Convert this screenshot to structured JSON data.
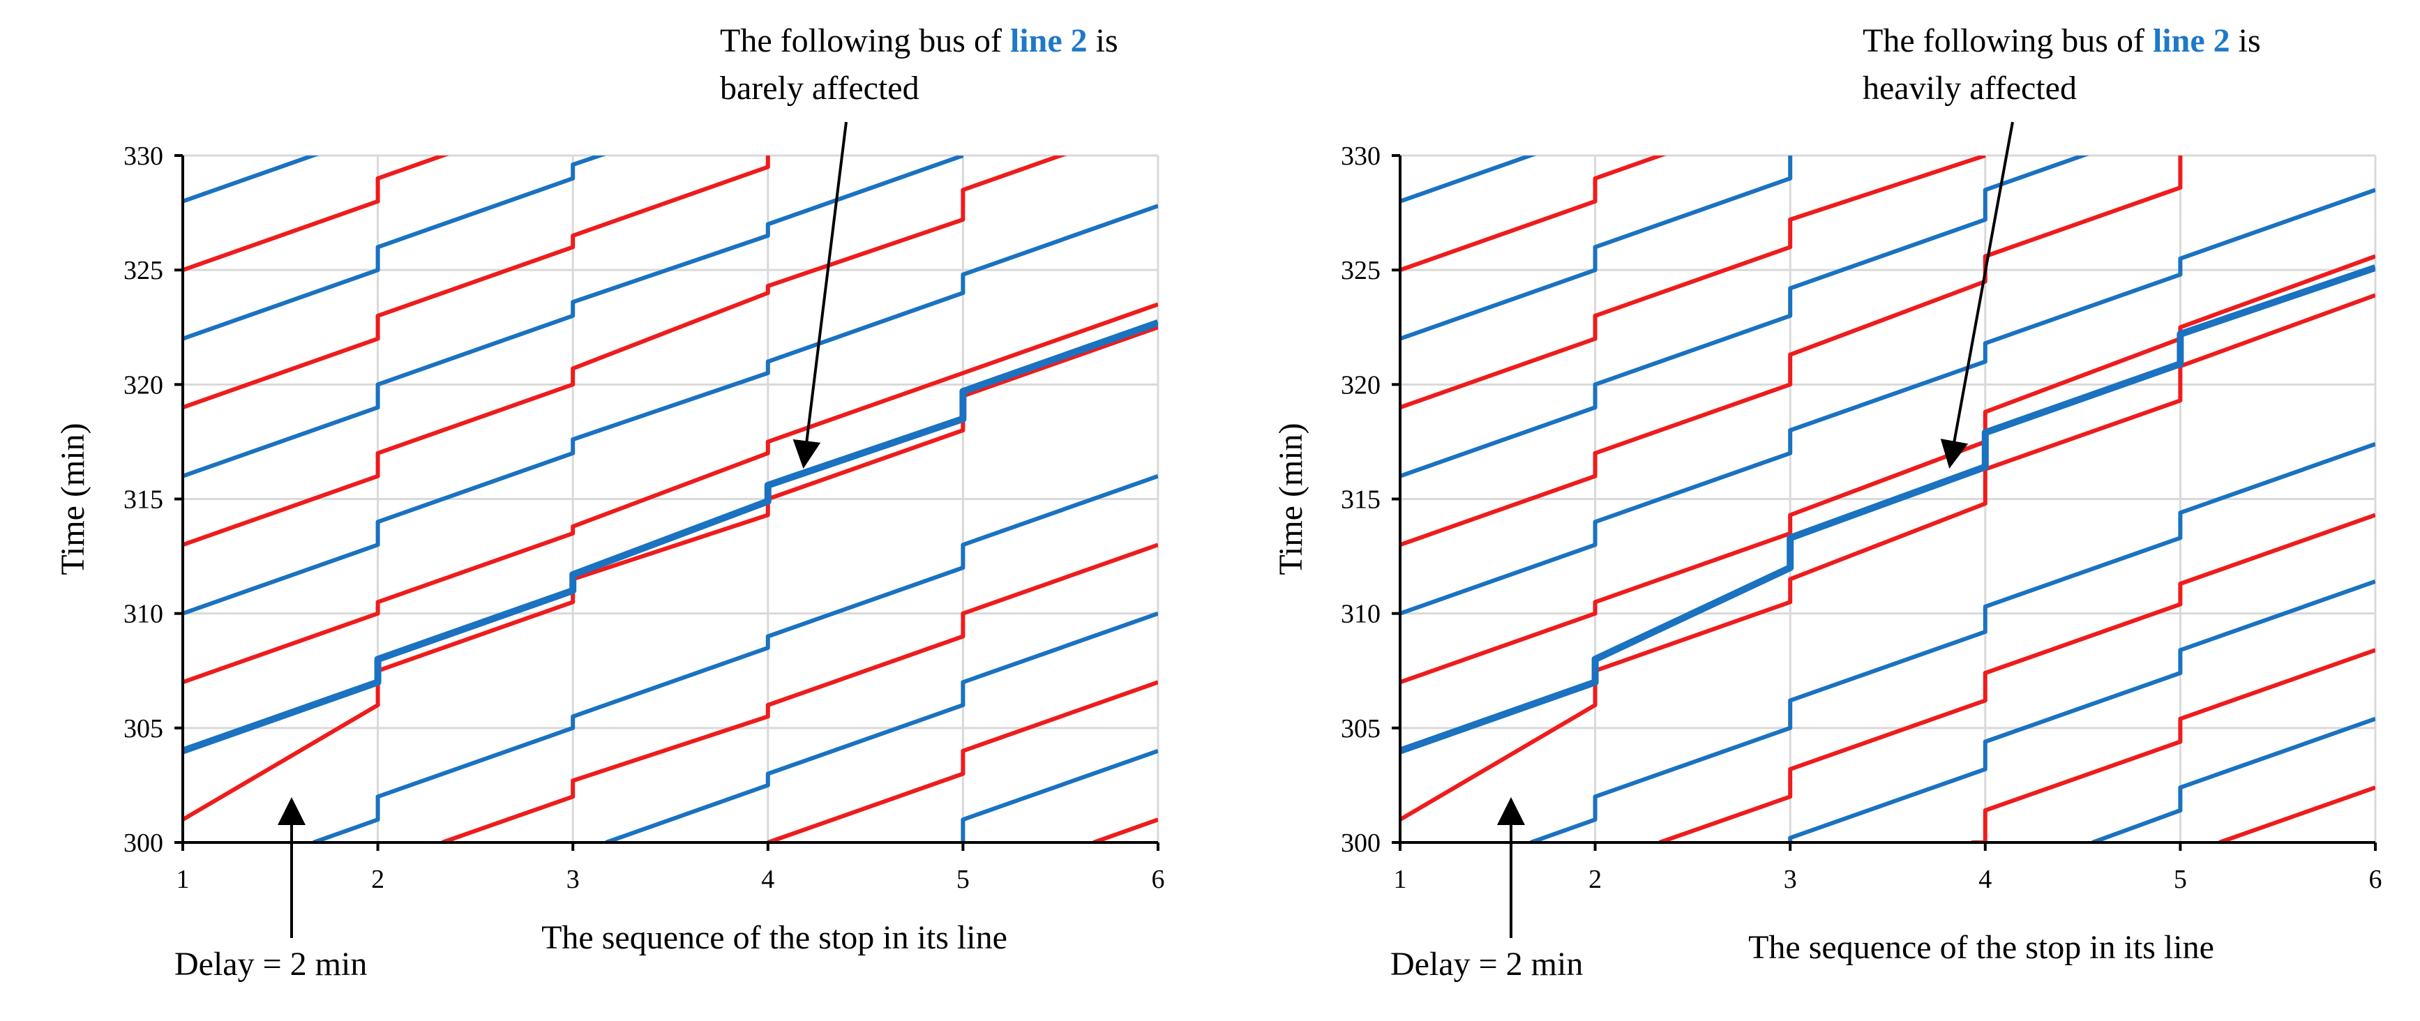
{
  "figure": {
    "colors": {
      "line1": "#ee1c1c",
      "line2": "#1a72c0",
      "grid": "#d9d9d9",
      "axis": "#000000"
    }
  },
  "chart_data": [
    {
      "type": "line",
      "xlabel": "The sequence of the stop in its line",
      "ylabel": "Time (min)",
      "xlim": [
        1,
        6
      ],
      "ylim": [
        300,
        330
      ],
      "x_ticks": [
        1,
        2,
        3,
        4,
        5,
        6
      ],
      "y_ticks": [
        300,
        305,
        310,
        315,
        320,
        325,
        330
      ],
      "grid": true,
      "annotations": [
        {
          "id": "following",
          "parts": [
            "The following bus of ",
            "line 2",
            " is"
          ],
          "line2": "barely affected"
        },
        {
          "id": "delay",
          "text": "Delay = 2 min"
        }
      ],
      "series": [
        {
          "color": "line1",
          "width": 6,
          "points": [
            [
              1,
              307
            ],
            [
              2,
              310
            ],
            [
              2,
              310.5
            ],
            [
              3,
              313.5
            ],
            [
              3,
              313.8
            ],
            [
              4,
              317
            ],
            [
              4,
              317.5
            ],
            [
              5,
              320.5
            ],
            [
              5,
              320.5
            ],
            [
              6,
              323.5
            ]
          ]
        },
        {
          "color": "line1",
          "width": 6,
          "points": [
            [
              1,
              313
            ],
            [
              2,
              316
            ],
            [
              2,
              317
            ],
            [
              3,
              320
            ],
            [
              3,
              320.7
            ],
            [
              4,
              324
            ],
            [
              4,
              324.3
            ],
            [
              5,
              327.2
            ],
            [
              5,
              328.5
            ],
            [
              6,
              331.5
            ]
          ]
        },
        {
          "color": "line1",
          "width": 6,
          "points": [
            [
              1,
              319
            ],
            [
              2,
              322
            ],
            [
              2,
              323
            ],
            [
              3,
              326
            ],
            [
              3,
              326.5
            ],
            [
              4,
              329.5
            ],
            [
              4,
              330
            ]
          ]
        },
        {
          "color": "line1",
          "width": 6,
          "points": [
            [
              1,
              325
            ],
            [
              2,
              328
            ],
            [
              2,
              329
            ],
            [
              3,
              332
            ]
          ]
        },
        {
          "color": "line1",
          "width": 6,
          "points": [
            [
              1,
              301
            ],
            [
              2,
              306
            ],
            [
              2,
              307.5
            ],
            [
              3,
              310.5
            ],
            [
              3,
              311.5
            ],
            [
              4,
              314.3
            ],
            [
              4,
              315
            ],
            [
              5,
              318
            ],
            [
              5,
              319.5
            ],
            [
              6,
              322.5
            ]
          ]
        },
        {
          "color": "line1",
          "width": 6,
          "points": [
            [
              2.33,
              300
            ],
            [
              3,
              302
            ],
            [
              3,
              302.7
            ],
            [
              4,
              305.5
            ],
            [
              4,
              306
            ],
            [
              5,
              309
            ],
            [
              5,
              310
            ],
            [
              6,
              313
            ]
          ]
        },
        {
          "color": "line1",
          "width": 6,
          "points": [
            [
              4,
              300
            ],
            [
              5,
              303
            ],
            [
              5,
              304
            ],
            [
              6,
              307
            ]
          ]
        },
        {
          "color": "line1",
          "width": 6,
          "points": [
            [
              5.67,
              300
            ],
            [
              6,
              301
            ]
          ]
        },
        {
          "color": "line2",
          "width": 6,
          "points": [
            [
              1,
              310
            ],
            [
              2,
              313
            ],
            [
              2,
              314
            ],
            [
              3,
              317
            ],
            [
              3,
              317.6
            ],
            [
              4,
              320.5
            ],
            [
              4,
              321
            ],
            [
              5,
              324
            ],
            [
              5,
              324.8
            ],
            [
              6,
              327.8
            ]
          ]
        },
        {
          "color": "line2",
          "width": 6,
          "points": [
            [
              1,
              316
            ],
            [
              2,
              319
            ],
            [
              2,
              320
            ],
            [
              3,
              323
            ],
            [
              3,
              323.6
            ],
            [
              4,
              326.5
            ],
            [
              4,
              327
            ],
            [
              5,
              330
            ],
            [
              5,
              330
            ]
          ]
        },
        {
          "color": "line2",
          "width": 6,
          "points": [
            [
              1,
              322
            ],
            [
              2,
              325
            ],
            [
              2,
              326
            ],
            [
              3,
              329
            ],
            [
              3,
              329.6
            ],
            [
              4,
              332.5
            ]
          ]
        },
        {
          "color": "line2",
          "width": 6,
          "points": [
            [
              1,
              328
            ],
            [
              2,
              331
            ]
          ]
        },
        {
          "color": "line2",
          "width": 6,
          "points": [
            [
              1.67,
              300
            ],
            [
              2,
              301
            ],
            [
              2,
              302
            ],
            [
              3,
              305
            ],
            [
              3,
              305.5
            ],
            [
              4,
              308.5
            ],
            [
              4,
              309
            ],
            [
              5,
              312
            ],
            [
              5,
              313
            ],
            [
              6,
              316
            ]
          ]
        },
        {
          "color": "line2",
          "width": 6,
          "points": [
            [
              3.17,
              300
            ],
            [
              4,
              302.5
            ],
            [
              4,
              303
            ],
            [
              5,
              306
            ],
            [
              5,
              307
            ],
            [
              6,
              310
            ]
          ]
        },
        {
          "color": "line2",
          "width": 6,
          "points": [
            [
              5,
              300
            ],
            [
              5,
              301
            ],
            [
              6,
              304
            ]
          ]
        },
        {
          "color": "line2",
          "width": 10,
          "highlight": true,
          "points": [
            [
              1,
              304
            ],
            [
              2,
              307
            ],
            [
              2,
              308
            ],
            [
              3,
              311
            ],
            [
              3,
              311.7
            ],
            [
              4,
              314.9
            ],
            [
              4,
              315.6
            ],
            [
              5,
              318.5
            ],
            [
              5,
              319.7
            ],
            [
              6,
              322.7
            ]
          ]
        }
      ]
    },
    {
      "type": "line",
      "xlabel": "The sequence of the stop in its line",
      "ylabel": "Time (min)",
      "xlim": [
        1,
        6
      ],
      "ylim": [
        300,
        330
      ],
      "x_ticks": [
        1,
        2,
        3,
        4,
        5,
        6
      ],
      "y_ticks": [
        300,
        305,
        310,
        315,
        320,
        325,
        330
      ],
      "grid": true,
      "annotations": [
        {
          "id": "following",
          "parts": [
            "The following bus of ",
            "line 2",
            " is"
          ],
          "line2": "heavily affected"
        },
        {
          "id": "delay",
          "text": "Delay = 2 min"
        }
      ],
      "series": [
        {
          "color": "line1",
          "width": 6,
          "points": [
            [
              1,
              307
            ],
            [
              2,
              310
            ],
            [
              2,
              310.5
            ],
            [
              3,
              313.5
            ],
            [
              3,
              314.3
            ],
            [
              4,
              317.5
            ],
            [
              4,
              318.8
            ],
            [
              5,
              322
            ],
            [
              5,
              322.5
            ],
            [
              6,
              325.6
            ]
          ]
        },
        {
          "color": "line1",
          "width": 6,
          "points": [
            [
              1,
              313
            ],
            [
              2,
              316
            ],
            [
              2,
              317
            ],
            [
              3,
              320
            ],
            [
              3,
              321.3
            ],
            [
              4,
              324.5
            ],
            [
              4,
              325.6
            ],
            [
              5,
              328.6
            ],
            [
              5,
              330
            ]
          ]
        },
        {
          "color": "line1",
          "width": 6,
          "points": [
            [
              1,
              319
            ],
            [
              2,
              322
            ],
            [
              2,
              323
            ],
            [
              3,
              326
            ],
            [
              3,
              327.2
            ],
            [
              4,
              330
            ]
          ]
        },
        {
          "color": "line1",
          "width": 6,
          "points": [
            [
              1,
              325
            ],
            [
              2,
              328
            ],
            [
              2,
              329
            ],
            [
              3,
              332
            ]
          ]
        },
        {
          "color": "line1",
          "width": 6,
          "points": [
            [
              1,
              301
            ],
            [
              2,
              306
            ],
            [
              2,
              307.5
            ],
            [
              3,
              310.5
            ],
            [
              3,
              311.5
            ],
            [
              4,
              314.8
            ],
            [
              4,
              316.3
            ],
            [
              5,
              319.3
            ],
            [
              5,
              320.8
            ],
            [
              6,
              323.9
            ]
          ]
        },
        {
          "color": "line1",
          "width": 6,
          "points": [
            [
              2.33,
              300
            ],
            [
              3,
              302
            ],
            [
              3,
              303.2
            ],
            [
              4,
              306.2
            ],
            [
              4,
              307.4
            ],
            [
              5,
              310.4
            ],
            [
              5,
              311.3
            ],
            [
              6,
              314.3
            ]
          ]
        },
        {
          "color": "line1",
          "width": 6,
          "points": [
            [
              3.93,
              300
            ],
            [
              4,
              300
            ],
            [
              4,
              301.4
            ],
            [
              5,
              304.4
            ],
            [
              5,
              305.4
            ],
            [
              6,
              308.4
            ]
          ]
        },
        {
          "color": "line1",
          "width": 6,
          "points": [
            [
              5.2,
              300
            ],
            [
              6,
              302.4
            ]
          ]
        },
        {
          "color": "line2",
          "width": 6,
          "points": [
            [
              1,
              310
            ],
            [
              2,
              313
            ],
            [
              2,
              314
            ],
            [
              3,
              317
            ],
            [
              3,
              318
            ],
            [
              4,
              321
            ],
            [
              4,
              321.8
            ],
            [
              5,
              324.8
            ],
            [
              5,
              325.5
            ],
            [
              6,
              328.5
            ]
          ]
        },
        {
          "color": "line2",
          "width": 6,
          "points": [
            [
              1,
              316
            ],
            [
              2,
              319
            ],
            [
              2,
              320
            ],
            [
              3,
              323
            ],
            [
              3,
              324.2
            ],
            [
              4,
              327.2
            ],
            [
              4,
              328.5
            ],
            [
              5,
              331.5
            ]
          ]
        },
        {
          "color": "line2",
          "width": 6,
          "points": [
            [
              1,
              322
            ],
            [
              2,
              325
            ],
            [
              2,
              326
            ],
            [
              3,
              329
            ],
            [
              3,
              330
            ]
          ]
        },
        {
          "color": "line2",
          "width": 6,
          "points": [
            [
              1,
              328
            ],
            [
              2,
              331
            ]
          ]
        },
        {
          "color": "line2",
          "width": 6,
          "points": [
            [
              1.67,
              300
            ],
            [
              2,
              301
            ],
            [
              2,
              302
            ],
            [
              3,
              305
            ],
            [
              3,
              306.2
            ],
            [
              4,
              309.2
            ],
            [
              4,
              310.3
            ],
            [
              5,
              313.3
            ],
            [
              5,
              314.4
            ],
            [
              6,
              317.4
            ]
          ]
        },
        {
          "color": "line2",
          "width": 6,
          "points": [
            [
              3,
              300
            ],
            [
              3,
              300.2
            ],
            [
              4,
              303.2
            ],
            [
              4,
              304.4
            ],
            [
              5,
              307.4
            ],
            [
              5,
              308.4
            ],
            [
              6,
              311.4
            ]
          ]
        },
        {
          "color": "line2",
          "width": 6,
          "points": [
            [
              4.55,
              300
            ],
            [
              5,
              301.4
            ],
            [
              5,
              302.4
            ],
            [
              6,
              305.4
            ]
          ]
        },
        {
          "color": "line2",
          "width": 10,
          "highlight": true,
          "points": [
            [
              1,
              304
            ],
            [
              2,
              307
            ],
            [
              2,
              308
            ],
            [
              3,
              312
            ],
            [
              3,
              313.3
            ],
            [
              4,
              316.4
            ],
            [
              4,
              317.9
            ],
            [
              5,
              320.9
            ],
            [
              5,
              322.2
            ],
            [
              6,
              325.1
            ]
          ]
        }
      ]
    }
  ]
}
